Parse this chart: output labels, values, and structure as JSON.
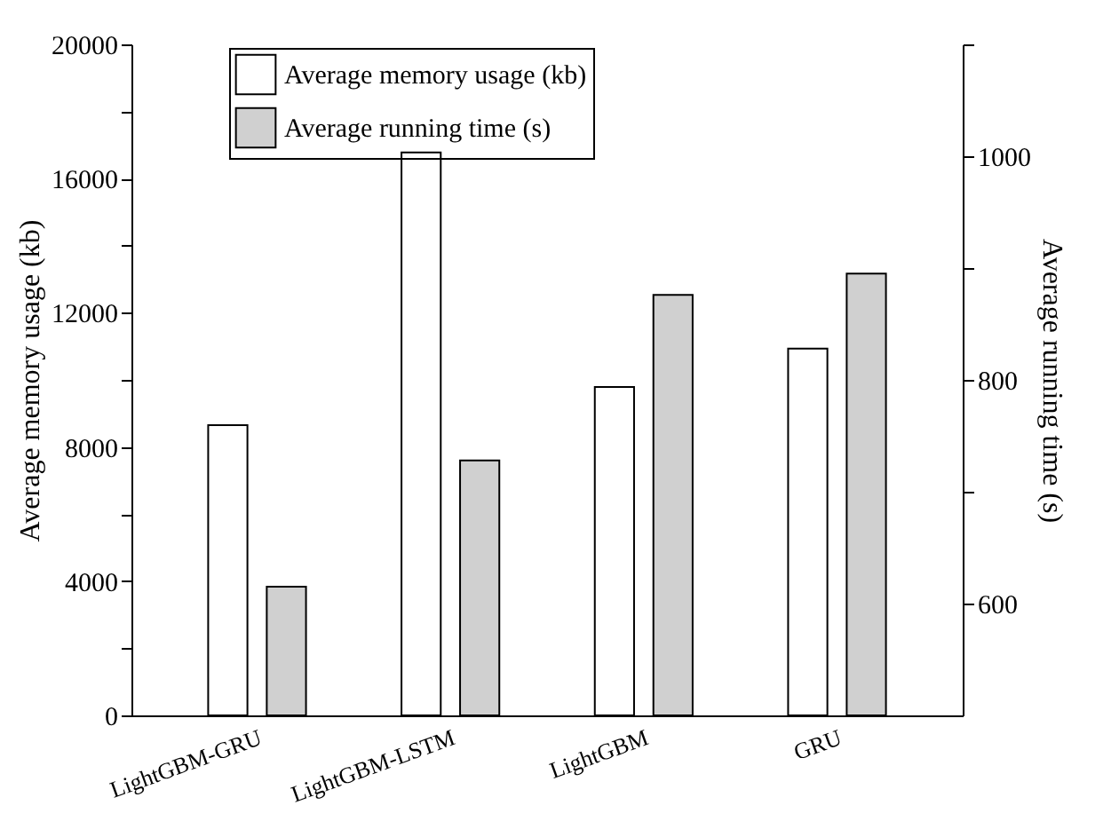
{
  "chart_data": {
    "type": "bar",
    "xlabel": null,
    "ylabel": "Average memory usage (kb)",
    "y2label": "Average running time (s)",
    "categories": [
      "LightGBM-GRU",
      "LightGBM-LSTM",
      "LightGBM",
      "GRU"
    ],
    "series": [
      {
        "name": "Average memory usage (kb)",
        "color": "#ffffff",
        "values": [
          8650,
          16780,
          9790,
          10930
        ]
      },
      {
        "name": "Average running time (s)",
        "color": "#d0d0d0",
        "values": [
          615,
          728,
          876,
          895
        ],
        "axis": "y2"
      }
    ],
    "ylim": [
      0,
      20000
    ],
    "yticks": [
      0,
      {
        "value": 2000,
        "label": null
      },
      4000,
      {
        "value": 6000,
        "label": null
      },
      8000,
      {
        "value": 10000,
        "label": null
      },
      12000,
      {
        "value": 14000,
        "label": null
      },
      16000,
      {
        "value": 18000,
        "label": null
      },
      20000
    ],
    "y2lim": [
      500,
      1100
    ],
    "y2ticks": [
      600,
      {
        "value": 700,
        "label": null
      },
      800,
      {
        "value": 900,
        "label": null
      },
      1000,
      {
        "value": 1100,
        "label": null
      }
    ],
    "grid": false,
    "legend": "top left"
  }
}
